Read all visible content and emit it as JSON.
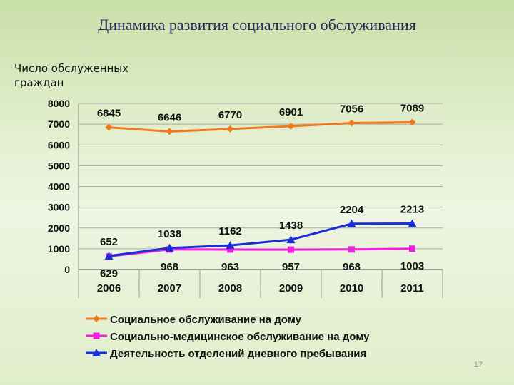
{
  "slide": {
    "title": "Динамика развития социального обслуживания",
    "page_number": "17"
  },
  "chart_data": {
    "type": "line",
    "title": "Динамика развития социального обслуживания",
    "ylabel": "Число обслуженных граждан",
    "xlabel": "",
    "categories": [
      "2006",
      "2007",
      "2008",
      "2009",
      "2010",
      "2011"
    ],
    "ylim": [
      0,
      8000
    ],
    "yticks": [
      0,
      1000,
      2000,
      3000,
      4000,
      5000,
      6000,
      7000,
      8000
    ],
    "grid": true,
    "legend_position": "bottom",
    "series": [
      {
        "name": "Социальное обслуживание на дому",
        "values": [
          6845,
          6646,
          6770,
          6901,
          7056,
          7089
        ],
        "labels": [
          "6845",
          "6646",
          "6770",
          "6901",
          "7056",
          "7089"
        ],
        "color": "#f07a1e",
        "marker": "diamond",
        "label_position": "above"
      },
      {
        "name": "Социально-медицинское обслуживание на дому",
        "values": [
          629,
          968,
          963,
          957,
          968,
          1003
        ],
        "labels": [
          "629",
          "968",
          "963",
          "957",
          "968",
          "1003"
        ],
        "color": "#ee22dd",
        "marker": "square",
        "label_position": "below"
      },
      {
        "name": "Деятельность отделений дневного пребывания",
        "values": [
          652,
          1038,
          1162,
          1438,
          2204,
          2213
        ],
        "labels": [
          "652",
          "1038",
          "1162",
          "1438",
          "2204",
          "2213"
        ],
        "color": "#1a2ed8",
        "marker": "triangle",
        "label_position": "above"
      }
    ]
  }
}
